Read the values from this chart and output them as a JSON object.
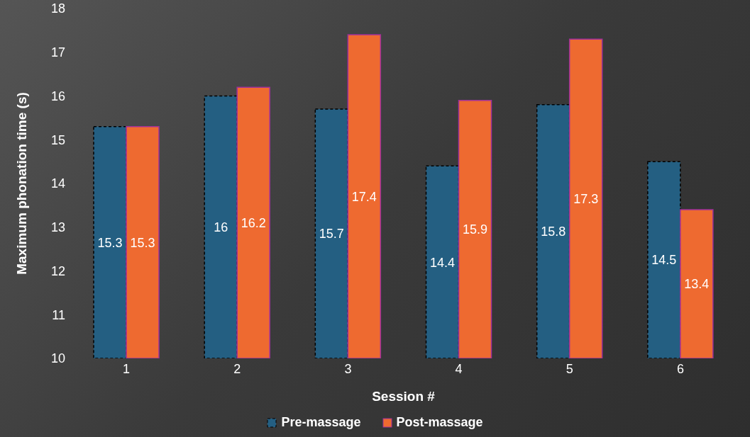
{
  "chart_data": {
    "type": "bar",
    "xlabel": "Session #",
    "ylabel": "Maximum phonation time (s)",
    "categories": [
      "1",
      "2",
      "3",
      "4",
      "5",
      "6"
    ],
    "series": [
      {
        "name": "Pre-massage",
        "color": "#245f82",
        "values": [
          15.3,
          16,
          15.7,
          14.4,
          15.8,
          14.5
        ]
      },
      {
        "name": "Post-massage",
        "color": "#ee6a30",
        "values": [
          15.3,
          16.2,
          17.4,
          15.9,
          17.3,
          13.4
        ]
      }
    ],
    "ylim": [
      10,
      18
    ],
    "yticks": [
      10,
      11,
      12,
      13,
      14,
      15,
      16,
      17,
      18
    ],
    "grid": false,
    "legend": "bottom",
    "data_labels": true
  }
}
